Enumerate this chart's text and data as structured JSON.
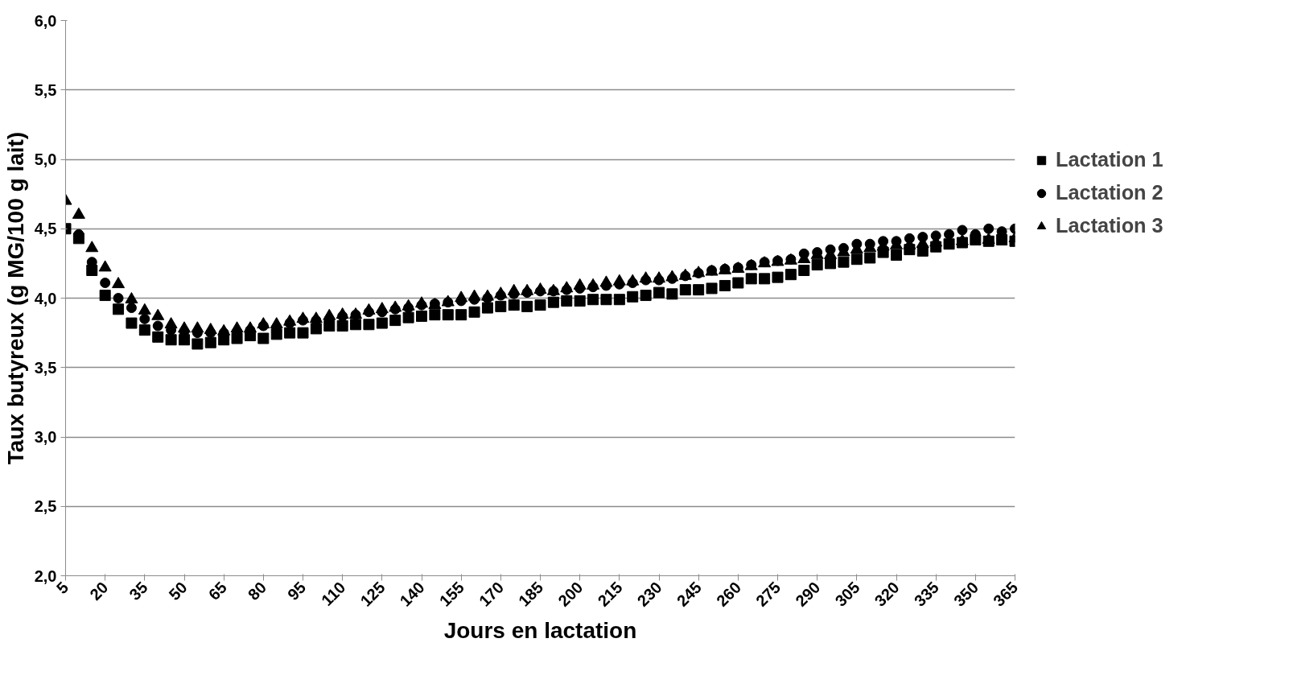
{
  "chart_data": {
    "type": "scatter",
    "xlabel": "Jours en lactation",
    "ylabel": "Taux butyreux (g MG/100 g lait)",
    "x": [
      5,
      10,
      15,
      20,
      25,
      30,
      35,
      40,
      45,
      50,
      55,
      60,
      65,
      70,
      75,
      80,
      85,
      90,
      95,
      100,
      105,
      110,
      115,
      120,
      125,
      130,
      135,
      140,
      145,
      150,
      155,
      160,
      165,
      170,
      175,
      180,
      185,
      190,
      195,
      200,
      205,
      210,
      215,
      220,
      225,
      230,
      235,
      240,
      245,
      250,
      255,
      260,
      265,
      270,
      275,
      280,
      285,
      290,
      295,
      300,
      305,
      310,
      315,
      320,
      325,
      330,
      335,
      340,
      345,
      350,
      355,
      360,
      365
    ],
    "series": [
      {
        "name": "Lactation 1",
        "color": "#000000",
        "marker": "square",
        "values": [
          4.5,
          4.43,
          4.2,
          4.02,
          3.92,
          3.82,
          3.77,
          3.72,
          3.7,
          3.7,
          3.67,
          3.68,
          3.7,
          3.71,
          3.73,
          3.71,
          3.74,
          3.75,
          3.75,
          3.78,
          3.8,
          3.8,
          3.81,
          3.81,
          3.82,
          3.84,
          3.86,
          3.87,
          3.88,
          3.88,
          3.88,
          3.9,
          3.93,
          3.94,
          3.95,
          3.94,
          3.95,
          3.97,
          3.98,
          3.98,
          3.99,
          3.99,
          3.99,
          4.01,
          4.02,
          4.04,
          4.03,
          4.06,
          4.06,
          4.07,
          4.09,
          4.11,
          4.14,
          4.14,
          4.15,
          4.17,
          4.2,
          4.24,
          4.25,
          4.26,
          4.28,
          4.29,
          4.33,
          4.31,
          4.35,
          4.34,
          4.37,
          4.39,
          4.4,
          4.42,
          4.41,
          4.42,
          4.41
        ]
      },
      {
        "name": "Lactation 2",
        "color": "#000000",
        "marker": "circle",
        "values": [
          null,
          4.46,
          4.26,
          4.11,
          4.0,
          3.93,
          3.85,
          3.8,
          3.77,
          3.76,
          3.75,
          3.75,
          3.75,
          3.76,
          3.77,
          3.8,
          3.79,
          3.82,
          3.84,
          3.84,
          3.85,
          3.87,
          3.88,
          3.9,
          3.9,
          3.92,
          3.93,
          3.95,
          3.96,
          3.97,
          3.98,
          3.99,
          4.0,
          4.02,
          4.03,
          4.04,
          4.05,
          4.05,
          4.06,
          4.07,
          4.08,
          4.09,
          4.1,
          4.11,
          4.13,
          4.13,
          4.14,
          4.16,
          4.18,
          4.2,
          4.21,
          4.22,
          4.24,
          4.26,
          4.27,
          4.28,
          4.32,
          4.33,
          4.35,
          4.36,
          4.39,
          4.39,
          4.41,
          4.41,
          4.43,
          4.44,
          4.45,
          4.46,
          4.49,
          4.46,
          4.5,
          4.48,
          4.5
        ]
      },
      {
        "name": "Lactation 3",
        "color": "#000000",
        "marker": "triangle",
        "values": [
          4.7,
          4.6,
          4.36,
          4.22,
          4.1,
          3.99,
          3.91,
          3.87,
          3.81,
          3.78,
          3.78,
          3.77,
          3.76,
          3.78,
          3.78,
          3.81,
          3.81,
          3.83,
          3.85,
          3.85,
          3.87,
          3.88,
          3.88,
          3.91,
          3.92,
          3.93,
          3.94,
          3.96,
          3.95,
          3.97,
          4.0,
          4.01,
          4.01,
          4.03,
          4.05,
          4.05,
          4.06,
          4.05,
          4.07,
          4.09,
          4.09,
          4.11,
          4.12,
          4.12,
          4.14,
          4.14,
          4.15,
          4.16,
          4.18,
          4.19,
          4.2,
          4.21,
          4.23,
          4.25,
          4.26,
          4.27,
          4.28,
          4.31,
          4.31,
          4.33,
          4.35,
          4.36,
          4.37,
          4.38,
          4.38,
          4.39,
          4.4,
          null,
          4.41,
          null,
          4.42,
          null,
          4.43
        ]
      }
    ],
    "xlim": [
      5,
      365
    ],
    "xticks": [
      5,
      20,
      35,
      50,
      65,
      80,
      95,
      110,
      125,
      140,
      155,
      170,
      185,
      200,
      215,
      230,
      245,
      260,
      275,
      290,
      305,
      320,
      335,
      350,
      365
    ],
    "ylim": [
      2.0,
      6.0
    ],
    "yticks": [
      {
        "value": 2.0,
        "label": "2,0"
      },
      {
        "value": 2.5,
        "label": "2,5"
      },
      {
        "value": 3.0,
        "label": "3,0"
      },
      {
        "value": 3.5,
        "label": "3,5"
      },
      {
        "value": 4.0,
        "label": "4,0"
      },
      {
        "value": 4.5,
        "label": "4,5"
      },
      {
        "value": 5.0,
        "label": "5,0"
      },
      {
        "value": 5.5,
        "label": "5,5"
      },
      {
        "value": 6.0,
        "label": "6,0"
      }
    ],
    "grid": "y",
    "legend": "right"
  }
}
